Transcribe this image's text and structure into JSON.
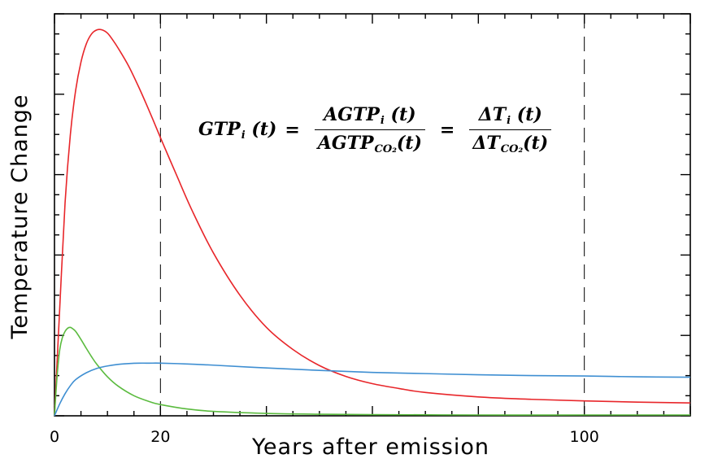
{
  "chart_data": {
    "type": "line",
    "xlabel": "Years after emission",
    "ylabel": "Temperature Change",
    "xlim": [
      0,
      120
    ],
    "ylim": [
      0,
      1
    ],
    "x_tick_labels": [
      {
        "value": 0,
        "label": "0"
      },
      {
        "value": 20,
        "label": "20"
      },
      {
        "value": 100,
        "label": "100"
      }
    ],
    "reference_lines": [
      20,
      100
    ],
    "y_tick_labels_shown": false,
    "series": [
      {
        "name": "red",
        "color": "#e8262a",
        "x": [
          0,
          1,
          2,
          3,
          4,
          5,
          6,
          7,
          8,
          9,
          10,
          11,
          12,
          14,
          16,
          18,
          20,
          23,
          26,
          30,
          35,
          40,
          45,
          50,
          55,
          60,
          65,
          70,
          80,
          90,
          100,
          110,
          120
        ],
        "y": [
          0,
          0.27,
          0.53,
          0.7,
          0.81,
          0.88,
          0.925,
          0.95,
          0.96,
          0.96,
          0.952,
          0.935,
          0.915,
          0.87,
          0.815,
          0.755,
          0.692,
          0.6,
          0.51,
          0.405,
          0.3,
          0.22,
          0.165,
          0.125,
          0.098,
          0.08,
          0.068,
          0.058,
          0.047,
          0.041,
          0.037,
          0.034,
          0.032
        ]
      },
      {
        "name": "green",
        "color": "#5bbb3f",
        "x": [
          0,
          0.5,
          1,
          1.5,
          2,
          2.5,
          3,
          3.5,
          4,
          5,
          6,
          7,
          8,
          10,
          12,
          15,
          18,
          20,
          25,
          30,
          40,
          50,
          60,
          80,
          100,
          120
        ],
        "y": [
          0,
          0.1,
          0.165,
          0.195,
          0.21,
          0.218,
          0.22,
          0.216,
          0.21,
          0.19,
          0.168,
          0.147,
          0.128,
          0.097,
          0.074,
          0.05,
          0.035,
          0.028,
          0.017,
          0.011,
          0.006,
          0.004,
          0.003,
          0.002,
          0.002,
          0.002
        ]
      },
      {
        "name": "blue",
        "color": "#3f8fd2",
        "x": [
          0,
          1,
          2,
          3,
          4,
          6,
          8,
          10,
          12,
          14,
          16,
          18,
          20,
          25,
          30,
          40,
          50,
          60,
          70,
          80,
          90,
          100,
          110,
          120
        ],
        "y": [
          0,
          0.03,
          0.055,
          0.075,
          0.09,
          0.107,
          0.118,
          0.124,
          0.128,
          0.13,
          0.131,
          0.131,
          0.131,
          0.129,
          0.126,
          0.119,
          0.113,
          0.108,
          0.105,
          0.102,
          0.1,
          0.099,
          0.097,
          0.096
        ]
      }
    ]
  },
  "formula": {
    "lhs": "GTP",
    "lhs_sub": "i",
    "lhs_arg": "(t)",
    "eq": "=",
    "frac1_num": "AGTP",
    "frac1_num_sub": "i",
    "frac1_num_arg": "(t)",
    "frac1_den": "AGTP",
    "frac1_den_sub": "CO₂",
    "frac1_den_arg": "(t)",
    "frac2_num": "ΔT",
    "frac2_num_sub": "i",
    "frac2_num_arg": "(t)",
    "frac2_den": "ΔT",
    "frac2_den_sub": "CO₂",
    "frac2_den_arg": "(t)"
  }
}
